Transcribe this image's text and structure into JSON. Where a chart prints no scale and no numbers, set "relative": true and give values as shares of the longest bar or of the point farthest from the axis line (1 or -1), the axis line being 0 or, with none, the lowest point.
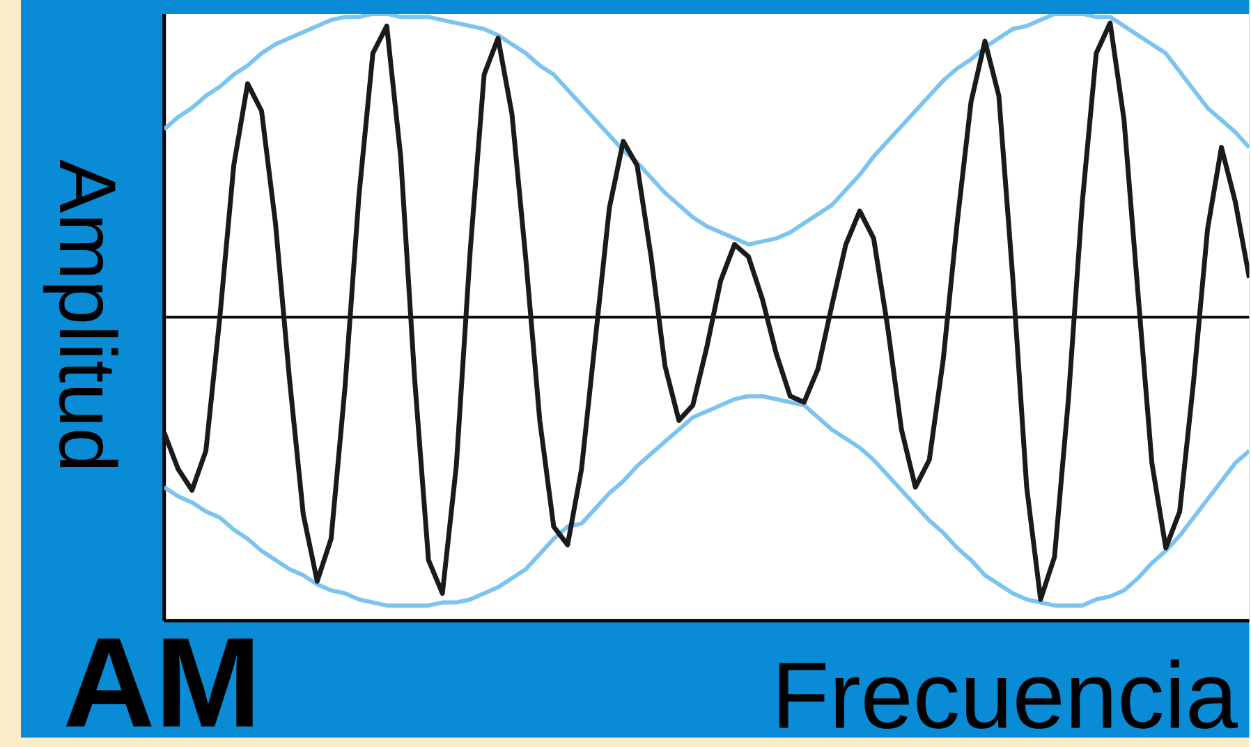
{
  "chart_data": {
    "type": "line",
    "title": "AM",
    "xlabel": "Frecuencia",
    "ylabel": "Amplitud",
    "relative": true,
    "categories": [
      null,
      null,
      null,
      null,
      null,
      null,
      null,
      null,
      null,
      null,
      null,
      null,
      null,
      null,
      null,
      null,
      null,
      null,
      null,
      null,
      null,
      null,
      null,
      null,
      null,
      null,
      null,
      null,
      null,
      null,
      null,
      null,
      null,
      null,
      null,
      null,
      null,
      null,
      null,
      null,
      null,
      null,
      null,
      null,
      null,
      null,
      null,
      null,
      null,
      null,
      null,
      null,
      null,
      null,
      null,
      null,
      null,
      null,
      null,
      null,
      null,
      null,
      null,
      null,
      null,
      null,
      null,
      null,
      null,
      null,
      null,
      null,
      null,
      null,
      null,
      null,
      null,
      null,
      null
    ],
    "series": [
      {
        "color": "#7cc4ef",
        "values": [
          0.62,
          0.66,
          0.69,
          0.73,
          0.76,
          0.8,
          0.83,
          0.87,
          0.9,
          0.92,
          0.94,
          0.96,
          0.98,
          0.99,
          0.99,
          1.0,
          1.0,
          0.99,
          0.99,
          0.99,
          0.98,
          0.97,
          0.96,
          0.95,
          0.93,
          0.9,
          0.87,
          0.83,
          0.8,
          0.75,
          0.7,
          0.65,
          0.6,
          0.55,
          0.51,
          0.46,
          0.41,
          0.37,
          0.33,
          0.3,
          0.28,
          0.26,
          0.24,
          0.25,
          0.26,
          0.28,
          0.31,
          0.34,
          0.37,
          0.42,
          0.47,
          0.53,
          0.58,
          0.63,
          0.68,
          0.73,
          0.78,
          0.82,
          0.85,
          0.89,
          0.92,
          0.95,
          0.96,
          0.98,
          1.0,
          1.0,
          1.0,
          0.99,
          0.99,
          0.96,
          0.93,
          0.9,
          0.87,
          0.81,
          0.75,
          0.69,
          0.65,
          0.61,
          0.56
        ]
      },
      {
        "color": "#7cc4ef",
        "values": [
          -0.56,
          -0.59,
          -0.61,
          -0.64,
          -0.66,
          -0.7,
          -0.73,
          -0.77,
          -0.8,
          -0.83,
          -0.85,
          -0.88,
          -0.9,
          -0.91,
          -0.93,
          -0.94,
          -0.95,
          -0.95,
          -0.95,
          -0.95,
          -0.94,
          -0.94,
          -0.93,
          -0.91,
          -0.89,
          -0.86,
          -0.83,
          -0.78,
          -0.73,
          -0.69,
          -0.68,
          -0.63,
          -0.58,
          -0.54,
          -0.49,
          -0.45,
          -0.41,
          -0.37,
          -0.33,
          -0.31,
          -0.29,
          -0.27,
          -0.26,
          -0.26,
          -0.27,
          -0.28,
          -0.29,
          -0.33,
          -0.37,
          -0.4,
          -0.43,
          -0.47,
          -0.52,
          -0.57,
          -0.62,
          -0.67,
          -0.71,
          -0.76,
          -0.8,
          -0.85,
          -0.88,
          -0.91,
          -0.93,
          -0.94,
          -0.95,
          -0.95,
          -0.95,
          -0.93,
          -0.92,
          -0.9,
          -0.86,
          -0.81,
          -0.77,
          -0.72,
          -0.66,
          -0.6,
          -0.54,
          -0.48,
          -0.44
        ]
      },
      {
        "color": "#1a1a1a",
        "values": [
          -0.38,
          -0.5,
          -0.57,
          -0.44,
          0.0,
          0.5,
          0.77,
          0.68,
          0.31,
          -0.2,
          -0.65,
          -0.87,
          -0.73,
          -0.23,
          0.4,
          0.87,
          0.96,
          0.53,
          -0.2,
          -0.8,
          -0.91,
          -0.49,
          0.22,
          0.8,
          0.92,
          0.67,
          0.19,
          -0.34,
          -0.69,
          -0.75,
          -0.5,
          -0.07,
          0.36,
          0.58,
          0.5,
          0.2,
          -0.16,
          -0.34,
          -0.29,
          -0.1,
          0.12,
          0.24,
          0.2,
          0.06,
          -0.12,
          -0.26,
          -0.28,
          -0.17,
          0.04,
          0.24,
          0.35,
          0.26,
          -0.03,
          -0.37,
          -0.56,
          -0.47,
          -0.14,
          0.31,
          0.71,
          0.91,
          0.73,
          0.13,
          -0.56,
          -0.93,
          -0.79,
          -0.27,
          0.38,
          0.87,
          0.97,
          0.65,
          0.08,
          -0.48,
          -0.76,
          -0.64,
          -0.21,
          0.29,
          0.56,
          0.38,
          0.13
        ]
      }
    ]
  }
}
